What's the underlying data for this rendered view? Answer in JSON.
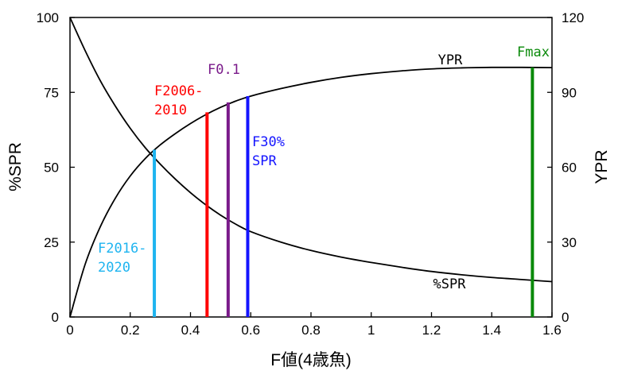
{
  "chart_data": {
    "type": "line",
    "xlabel": "F値(4歳魚)",
    "ylabel_left": "%SPR",
    "ylabel_right": "YPR",
    "xlim": [
      0,
      1.6
    ],
    "ylim_left": [
      0,
      100
    ],
    "ylim_right": [
      0,
      120
    ],
    "x_ticks": [
      0,
      0.2,
      0.4,
      0.6,
      0.8,
      1,
      1.2,
      1.4,
      1.6
    ],
    "x_tick_labels": [
      "0",
      "0.2",
      "0.4",
      "0.6",
      "0.8",
      "1",
      "1.2",
      "1.4",
      "1.6"
    ],
    "y_left_ticks": [
      0,
      25,
      50,
      75,
      100
    ],
    "y_left_tick_labels": [
      "0",
      "25",
      "50",
      "75",
      "100"
    ],
    "y_right_ticks": [
      0,
      30,
      60,
      90,
      120
    ],
    "y_right_tick_labels": [
      "0",
      "30",
      "60",
      "90",
      "120"
    ],
    "grid": false,
    "series": [
      {
        "name": "%SPR",
        "axis": "left",
        "color": "#000000",
        "x": [
          0,
          0.05,
          0.1,
          0.15,
          0.2,
          0.25,
          0.3,
          0.35,
          0.4,
          0.45,
          0.5,
          0.55,
          0.6,
          0.7,
          0.8,
          0.9,
          1.0,
          1.1,
          1.2,
          1.3,
          1.4,
          1.5,
          1.6
        ],
        "y": [
          100,
          89,
          79,
          70.5,
          63,
          56.5,
          51,
          46,
          41.5,
          37.5,
          34,
          31,
          28.5,
          25,
          22.2,
          20,
          18.2,
          16.6,
          15.2,
          14.1,
          13.2,
          12.5,
          11.8
        ]
      },
      {
        "name": "YPR",
        "axis": "right",
        "color": "#000000",
        "x": [
          0,
          0.05,
          0.1,
          0.15,
          0.2,
          0.25,
          0.3,
          0.35,
          0.4,
          0.45,
          0.5,
          0.55,
          0.6,
          0.7,
          0.8,
          0.9,
          1.0,
          1.1,
          1.2,
          1.3,
          1.4,
          1.5,
          1.6
        ],
        "y": [
          0,
          21,
          36,
          47.5,
          56.5,
          63.5,
          69,
          73.5,
          77.5,
          81,
          84,
          86.5,
          88.5,
          91.5,
          94,
          96,
          97.5,
          98.6,
          99.4,
          99.8,
          100,
          100,
          99.9
        ]
      }
    ],
    "reference_lines": [
      {
        "label": "F2016-\n2020",
        "x": 0.28,
        "ypr": 67,
        "color": "#1eb4f0"
      },
      {
        "label": "F2006-\n2010",
        "x": 0.455,
        "ypr": 82,
        "color": "#ff0000"
      },
      {
        "label": "F0.1",
        "x": 0.525,
        "ypr": 86,
        "color": "#7a1a8a"
      },
      {
        "label": "F30%\nSPR",
        "x": 0.59,
        "ypr": 88.5,
        "color": "#1414ff"
      },
      {
        "label": "Fmax",
        "x": 1.535,
        "ypr": 100,
        "color": "#0a8a0a"
      }
    ],
    "curve_labels": [
      {
        "text": "YPR",
        "series": "YPR"
      },
      {
        "text": "%SPR",
        "series": "%SPR"
      }
    ]
  }
}
